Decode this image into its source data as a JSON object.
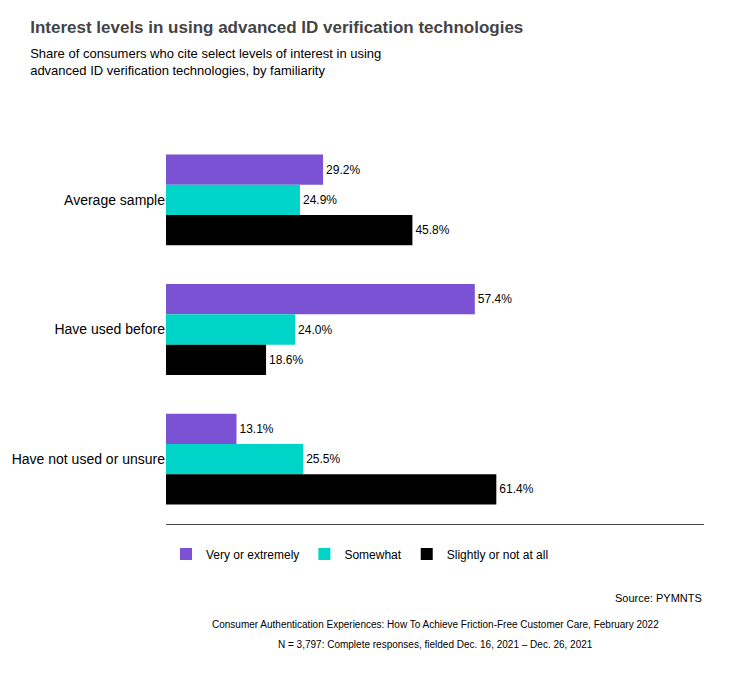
{
  "chart_data": {
    "type": "bar",
    "orientation": "horizontal",
    "title": "Interest levels in using advanced ID verification technologies",
    "subtitle": "Share of consumers who cite select levels of interest in using\nadvanced ID verification technologies, by familiarity",
    "categories": [
      "Average sample",
      "Have used before",
      "Have not used or unsure"
    ],
    "series": [
      {
        "name": "Very or extremely",
        "color": "#7B52D3",
        "values": [
          29.2,
          57.4,
          13.1
        ],
        "value_labels": [
          "29.2%",
          "57.4%",
          "13.1%"
        ]
      },
      {
        "name": "Somewhat",
        "color": "#00D4C8",
        "values": [
          24.9,
          24.0,
          25.5
        ],
        "value_labels": [
          "24.9%",
          "24.0%",
          "25.5%"
        ]
      },
      {
        "name": "Slightly or not at all",
        "color": "#000000",
        "values": [
          45.8,
          18.6,
          61.4
        ],
        "value_labels": [
          "45.8%",
          "18.6%",
          "61.4%"
        ]
      }
    ],
    "xlim": [
      0,
      100
    ],
    "data_labels": true,
    "tick_labels": "y",
    "grid": false,
    "legend": "bottom",
    "annotations": [
      "Source: PYMNTS",
      "Consumer Authentication Experiences: How To Achieve Friction-Free Customer Care, February 2022",
      "N = 3,797: Complete responses, fielded Dec. 16, 2021 – Dec. 26, 2021"
    ]
  }
}
